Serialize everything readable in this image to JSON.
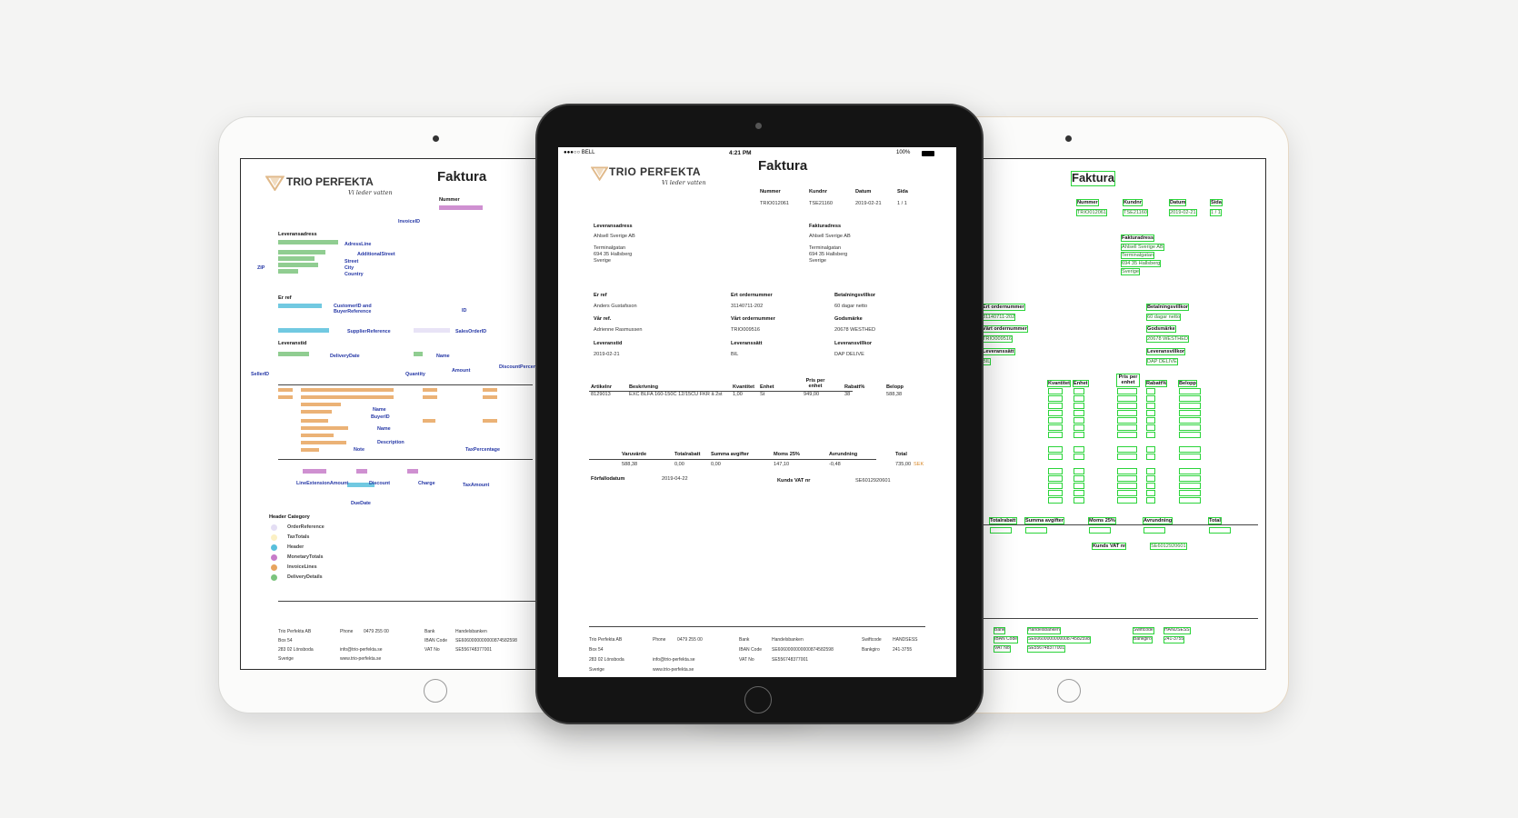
{
  "status_bar": {
    "carrier": "●●●○○ BELL",
    "time": "4:21 PM",
    "battery": "100%"
  },
  "invoice": {
    "brand": "TRIO PERFEKTA",
    "tagline": "Vi leder vatten",
    "title": "Faktura",
    "header": [
      {
        "label": "Nummer",
        "value": "TRIO012061"
      },
      {
        "label": "Kundnr",
        "value": "TSE21160"
      },
      {
        "label": "Datum",
        "value": "2019-02-21"
      },
      {
        "label": "Sida",
        "value": "1 / 1"
      }
    ],
    "delivery_address": {
      "label": "Leveransadress",
      "lines": [
        "Ahlsell Sverige AB",
        "Terminalgatan",
        "694 35 Hallsberg",
        "Sverige"
      ]
    },
    "invoice_address": {
      "label": "Fakturadress",
      "lines": [
        "Ahlsell Sverige AB",
        "Terminalgatan",
        "694 35 Hallsberg",
        "Sverige"
      ]
    },
    "references": [
      {
        "label": "Er ref",
        "value": "Anders Gustafsson"
      },
      {
        "label": "Vår ref.",
        "value": "Adrienne Rasmussen"
      },
      {
        "label": "Leveranstid",
        "value": "2019-02-21"
      },
      {
        "label": "Ert ordernummer",
        "value": "31140711-202"
      },
      {
        "label": "Vårt ordernummer",
        "value": "TRIO009516"
      },
      {
        "label": "Leveranssätt",
        "value": "BIL"
      },
      {
        "label": "Betalningsvillkor",
        "value": "60 dagar netto"
      },
      {
        "label": "Godsmärke",
        "value": "20678 WESTHED"
      },
      {
        "label": "Leveransvillkor",
        "value": "DAP DELIVE"
      }
    ],
    "lines": {
      "columns": [
        "Artikelnr",
        "Beskrivning",
        "Kvantitet",
        "Enhet",
        "Pris per enhet",
        "Rabatt%",
        "Belopp"
      ],
      "rows": [
        [
          "8129013",
          "EXC BLFA 160-150C 12/15CU FKR å 2st",
          "1,00",
          "St",
          "949,00",
          "38",
          "588,38"
        ]
      ]
    },
    "totals": {
      "columns": [
        "Varuvärde",
        "Totalrabatt",
        "Summa avgifter",
        "Moms 25%",
        "Avrundning",
        "Total"
      ],
      "values": [
        "588,38",
        "0,00",
        "0,00",
        "147,10",
        "-0,48",
        "735,00"
      ],
      "currency": "SEK"
    },
    "due": {
      "label": "Förfallodatum",
      "value": "2019-04-22"
    },
    "vat": {
      "label": "Kunds VAT nr",
      "value": "SE6012920601"
    },
    "footer": {
      "company": [
        "Trio Perfekta AB",
        "Box 54",
        "283 02 Lönsboda",
        "Sverige"
      ],
      "phone_label": "Phone",
      "phone": "0479 255 00",
      "email": "info@trio-perfekta.se",
      "web": "www.trio-perfekta.se",
      "bank": [
        {
          "label": "Bank",
          "value": "Handelsbanken"
        },
        {
          "label": "IBAN Code",
          "value": "SE6060000000000874582598"
        },
        {
          "label": "VAT No",
          "value": "SE556748377001"
        }
      ],
      "payment": [
        {
          "label": "Swiftcode",
          "value": "HANDSESS"
        },
        {
          "label": "Bankgiro",
          "value": "241-3755"
        }
      ]
    }
  },
  "annotated": {
    "labels": [
      "InvoiceID",
      "AdressLine",
      "AdditionalStreet",
      "Street",
      "City",
      "ZIP",
      "Country",
      "CustomerID and BuyerReference",
      "SupplierReference",
      "DeliveryDate",
      "SalesOrderID",
      "ID",
      "Name",
      "SellerID",
      "Quantity",
      "Amount",
      "DiscountPercent",
      "BuyerID",
      "Description",
      "Note",
      "TaxPercentage",
      "LineExtensionAmount",
      "Discount",
      "Charge",
      "TaxAmount",
      "DueDate"
    ],
    "legend": {
      "title": "Header Category",
      "items": [
        {
          "name": "OrderReference",
          "color": "#e4def4"
        },
        {
          "name": "TaxTotals",
          "color": "#fbf0c4"
        },
        {
          "name": "Header",
          "color": "#58bfdc"
        },
        {
          "name": "MonetaryTotals",
          "color": "#c77cc9"
        },
        {
          "name": "InvoiceLines",
          "color": "#e7a45e"
        },
        {
          "name": "DeliveryDetails",
          "color": "#7cc47e"
        }
      ]
    }
  }
}
